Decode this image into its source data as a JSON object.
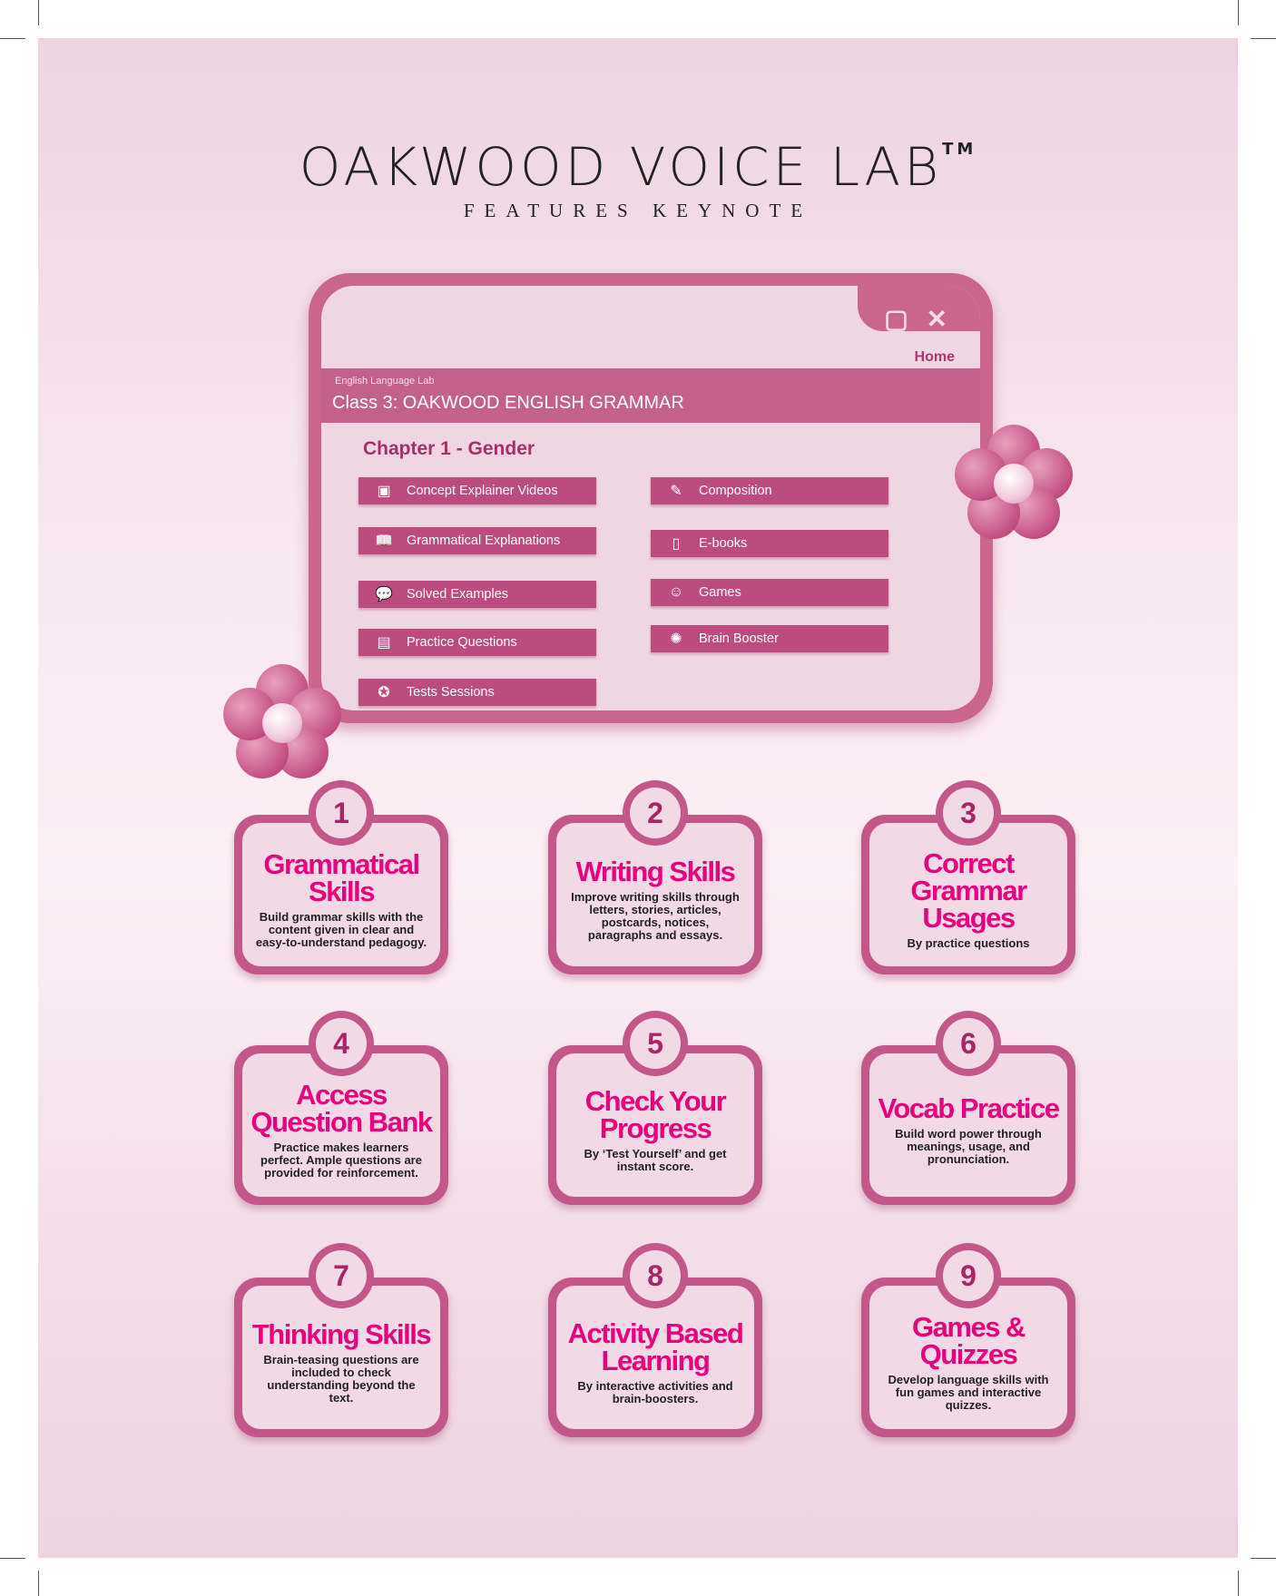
{
  "header": {
    "title": "OAKWOOD VOICE LAB",
    "trademark": "TM",
    "subtitle": "FEATURES KEYNOTE"
  },
  "window": {
    "controls": "_ ▢ ✕",
    "home": "Home",
    "app_label": "English Language Lab",
    "course_title": "Class 3: OAKWOOD ENGLISH GRAMMAR",
    "chapter": "Chapter 1 - Gender",
    "left_buttons": [
      {
        "label": "Concept Explainer Videos",
        "icon": "video-lesson-icon"
      },
      {
        "label": "Grammatical Explanations",
        "icon": "open-book-icon"
      },
      {
        "label": "Solved Examples",
        "icon": "chat-bubbles-icon"
      },
      {
        "label": "Practice Questions",
        "icon": "a-z-book-icon"
      },
      {
        "label": "Tests Sessions",
        "icon": "award-icon"
      }
    ],
    "right_buttons": [
      {
        "label": "Composition",
        "icon": "writing-pad-icon"
      },
      {
        "label": "E-books",
        "icon": "ebook-reader-icon"
      },
      {
        "label": "Games",
        "icon": "robot-icon"
      },
      {
        "label": "Brain Booster",
        "icon": "brain-bulb-icon"
      }
    ]
  },
  "features": [
    {
      "num": "1",
      "title": "Grammatical Skills",
      "desc": "Build grammar skills with the content given in clear and easy-to-understand pedagogy."
    },
    {
      "num": "2",
      "title": "Writing Skills",
      "desc": "Improve writing skills through letters, stories, articles, postcards, notices, paragraphs and essays."
    },
    {
      "num": "3",
      "title": "Correct Grammar Usages",
      "desc": "By practice questions"
    },
    {
      "num": "4",
      "title": "Access Question Bank",
      "desc": "Practice makes learners perfect. Ample questions are provided for reinforcement."
    },
    {
      "num": "5",
      "title": "Check Your Progress",
      "desc": "By ‘Test Yourself’ and get instant score."
    },
    {
      "num": "6",
      "title": "Vocab Practice",
      "desc": "Build word power through meanings, usage, and pronunciation."
    },
    {
      "num": "7",
      "title": "Thinking Skills",
      "desc": "Brain-teasing questions are included to check understanding beyond the text."
    },
    {
      "num": "8",
      "title": "Activity Based Learning",
      "desc": "By interactive activities and brain-boosters."
    },
    {
      "num": "9",
      "title": "Games & Quizzes",
      "desc": "Develop language skills with fun games and interactive quizzes."
    }
  ],
  "colors": {
    "accent": "#e6007e",
    "frame": "#c15889",
    "button": "#bc4c7f",
    "background": "#f7e6ee"
  }
}
